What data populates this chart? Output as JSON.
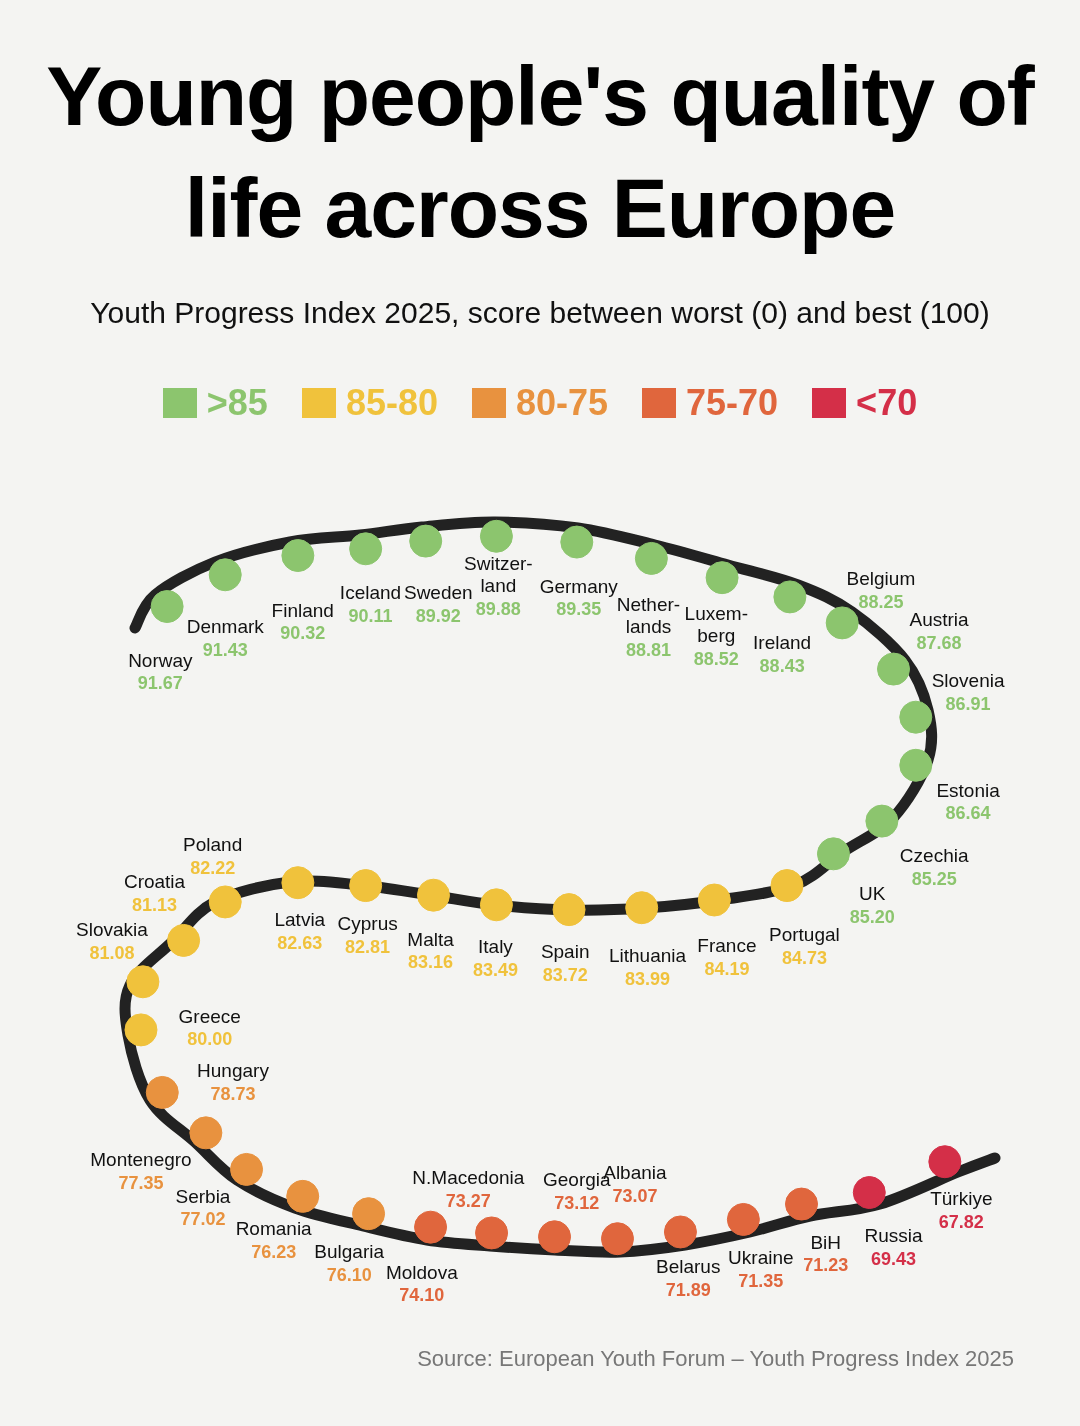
{
  "chart_data": {
    "type": "other",
    "title": "Young people's quality of life across Europe",
    "subtitle": "Youth Progress Index 2025, score between worst (0) and best (100)",
    "legend": "top",
    "data_labels": true,
    "categories": [
      "Norway",
      "Denmark",
      "Finland",
      "Iceland",
      "Sweden",
      "Switzer-land",
      "Germany",
      "Nether-lands",
      "Luxem-berg",
      "Ireland",
      "Belgium",
      "Austria",
      "Slovenia",
      "Estonia",
      "Czechia",
      "UK",
      "Portugal",
      "France",
      "Lithuania",
      "Spain",
      "Italy",
      "Malta",
      "Cyprus",
      "Latvia",
      "Poland",
      "Croatia",
      "Slovakia",
      "Greece",
      "Hungary",
      "Montenegro",
      "Serbia",
      "Romania",
      "Bulgaria",
      "Moldova",
      "N.Macedonia",
      "Georgia",
      "Albania",
      "Belarus",
      "Ukraine",
      "BiH",
      "Russia",
      "Türkiye"
    ],
    "series": [
      {
        "name": ">85",
        "color": "#8cc56e",
        "values": [
          91.67,
          91.43,
          90.32,
          90.11,
          89.92,
          89.88,
          89.35,
          88.81,
          88.52,
          88.43,
          88.25,
          87.68,
          86.91,
          86.64,
          85.25,
          85.2,
          null,
          null,
          null,
          null,
          null,
          null,
          null,
          null,
          null,
          null,
          null,
          null,
          null,
          null,
          null,
          null,
          null,
          null,
          null,
          null,
          null,
          null,
          null,
          null,
          null,
          null
        ],
        "value_labels": [
          "91.67",
          "91.43",
          "90.32",
          "90.11",
          "89.92",
          "89.88",
          "89.35",
          "88.81",
          "88.52",
          "88.43",
          "88.25",
          "87.68",
          "86.91",
          "86.64",
          "85.25",
          "85.20",
          null,
          null,
          null,
          null,
          null,
          null,
          null,
          null,
          null,
          null,
          null,
          null,
          null,
          null,
          null,
          null,
          null,
          null,
          null,
          null,
          null,
          null,
          null,
          null,
          null,
          null
        ]
      },
      {
        "name": "85-80",
        "color": "#f0c23c",
        "values": [
          null,
          null,
          null,
          null,
          null,
          null,
          null,
          null,
          null,
          null,
          null,
          null,
          null,
          null,
          null,
          null,
          84.73,
          84.19,
          83.99,
          83.72,
          83.49,
          83.16,
          82.81,
          82.63,
          82.22,
          81.13,
          81.08,
          80.0,
          null,
          null,
          null,
          null,
          null,
          null,
          null,
          null,
          null,
          null,
          null,
          null,
          null,
          null
        ],
        "value_labels": [
          null,
          null,
          null,
          null,
          null,
          null,
          null,
          null,
          null,
          null,
          null,
          null,
          null,
          null,
          null,
          null,
          "84.73",
          "84.19",
          "83.99",
          "83.72",
          "83.49",
          "83.16",
          "82.81",
          "82.63",
          "82.22",
          "81.13",
          "81.08",
          "80.00",
          null,
          null,
          null,
          null,
          null,
          null,
          null,
          null,
          null,
          null,
          null,
          null,
          null,
          null
        ]
      },
      {
        "name": "80-75",
        "color": "#e8923f",
        "values": [
          null,
          null,
          null,
          null,
          null,
          null,
          null,
          null,
          null,
          null,
          null,
          null,
          null,
          null,
          null,
          null,
          null,
          null,
          null,
          null,
          null,
          null,
          null,
          null,
          null,
          null,
          null,
          null,
          78.73,
          77.35,
          77.02,
          76.23,
          76.1,
          null,
          null,
          null,
          null,
          null,
          null,
          null,
          null,
          null
        ],
        "value_labels": [
          null,
          null,
          null,
          null,
          null,
          null,
          null,
          null,
          null,
          null,
          null,
          null,
          null,
          null,
          null,
          null,
          null,
          null,
          null,
          null,
          null,
          null,
          null,
          null,
          null,
          null,
          null,
          null,
          "78.73",
          "77.35",
          "77.02",
          "76.23",
          "76.10",
          null,
          null,
          null,
          null,
          null,
          null,
          null,
          null,
          null
        ]
      },
      {
        "name": "75-70",
        "color": "#e0663d",
        "values": [
          null,
          null,
          null,
          null,
          null,
          null,
          null,
          null,
          null,
          null,
          null,
          null,
          null,
          null,
          null,
          null,
          null,
          null,
          null,
          null,
          null,
          null,
          null,
          null,
          null,
          null,
          null,
          null,
          null,
          null,
          null,
          null,
          null,
          74.1,
          73.27,
          73.12,
          73.07,
          71.89,
          71.35,
          71.23,
          null,
          null
        ],
        "value_labels": [
          null,
          null,
          null,
          null,
          null,
          null,
          null,
          null,
          null,
          null,
          null,
          null,
          null,
          null,
          null,
          null,
          null,
          null,
          null,
          null,
          null,
          null,
          null,
          null,
          null,
          null,
          null,
          null,
          null,
          null,
          null,
          null,
          null,
          "74.10",
          "73.27",
          "73.12",
          "73.07",
          "71.89",
          "71.35",
          "71.23",
          null,
          null
        ]
      },
      {
        "name": "<70",
        "color": "#d42f48",
        "values": [
          null,
          null,
          null,
          null,
          null,
          null,
          null,
          null,
          null,
          null,
          null,
          null,
          null,
          null,
          null,
          null,
          null,
          null,
          null,
          null,
          null,
          null,
          null,
          null,
          null,
          null,
          null,
          null,
          null,
          null,
          null,
          null,
          null,
          null,
          null,
          null,
          null,
          null,
          null,
          null,
          69.43,
          67.82
        ],
        "value_labels": [
          null,
          null,
          null,
          null,
          null,
          null,
          null,
          null,
          null,
          null,
          null,
          null,
          null,
          null,
          null,
          null,
          null,
          null,
          null,
          null,
          null,
          null,
          null,
          null,
          null,
          null,
          null,
          null,
          null,
          null,
          null,
          null,
          null,
          null,
          null,
          null,
          null,
          null,
          null,
          null,
          "69.43",
          "67.82"
        ]
      }
    ],
    "annotations": [
      "Source: European Youth Forum – Youth Progress Index 2025"
    ]
  }
}
